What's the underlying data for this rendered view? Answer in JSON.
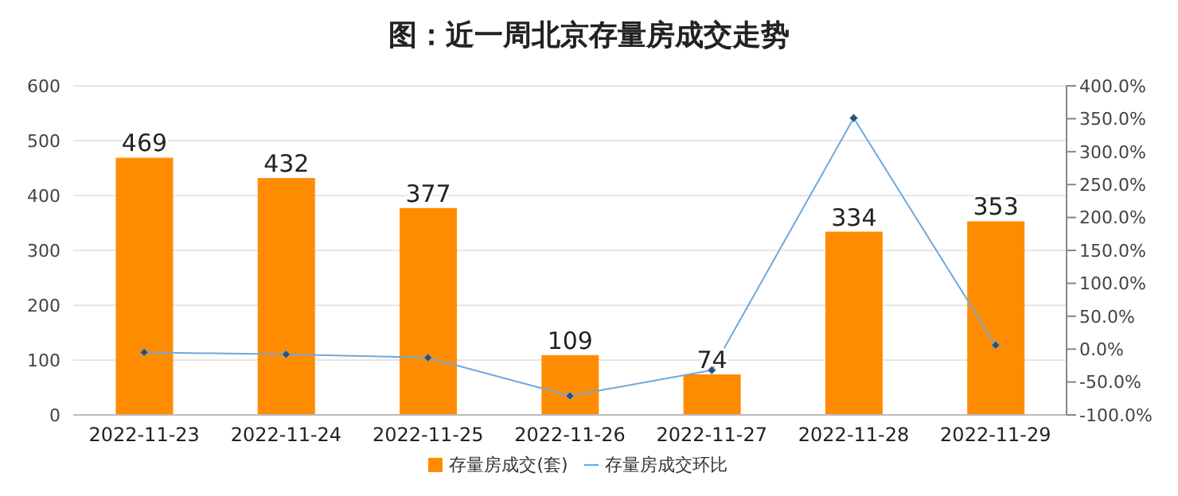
{
  "chart_data": {
    "type": "bar",
    "title": "图：近一周北京存量房成交走势",
    "categories": [
      "2022-11-23",
      "2022-11-24",
      "2022-11-25",
      "2022-11-26",
      "2022-11-27",
      "2022-11-28",
      "2022-11-29"
    ],
    "series": [
      {
        "name": "存量房成交(套)",
        "color": "#ff8c00",
        "values": [
          469,
          432,
          377,
          109,
          74,
          334,
          353
        ],
        "value_labels": [
          "469",
          "432",
          "377",
          "109",
          "74",
          "334",
          "353"
        ]
      },
      {
        "name": "存量房成交环比",
        "type": "line",
        "axis": "y2",
        "color": "#6fa8dc",
        "values": [
          -5,
          -8,
          -13,
          -71,
          -32,
          351,
          6
        ]
      }
    ],
    "ylim": [
      0,
      600
    ],
    "yticks": [
      0,
      100,
      200,
      300,
      400,
      500,
      600
    ],
    "y2lim": [
      -100,
      400
    ],
    "y2ticks": [
      {
        "value": -100,
        "label": "-100.0%"
      },
      {
        "value": -50,
        "label": "-50.0%"
      },
      {
        "value": 0,
        "label": "0.0%"
      },
      {
        "value": 50,
        "label": "50.0%"
      },
      {
        "value": 100,
        "label": "100.0%"
      },
      {
        "value": 150,
        "label": "150.0%"
      },
      {
        "value": 200,
        "label": "200.0%"
      },
      {
        "value": 250,
        "label": "250.0%"
      },
      {
        "value": 300,
        "label": "300.0%"
      },
      {
        "value": 350,
        "label": "350.0%"
      },
      {
        "value": 400,
        "label": "400.0%"
      }
    ],
    "grid": "y",
    "legend": "bottom",
    "marker": "diamond"
  }
}
